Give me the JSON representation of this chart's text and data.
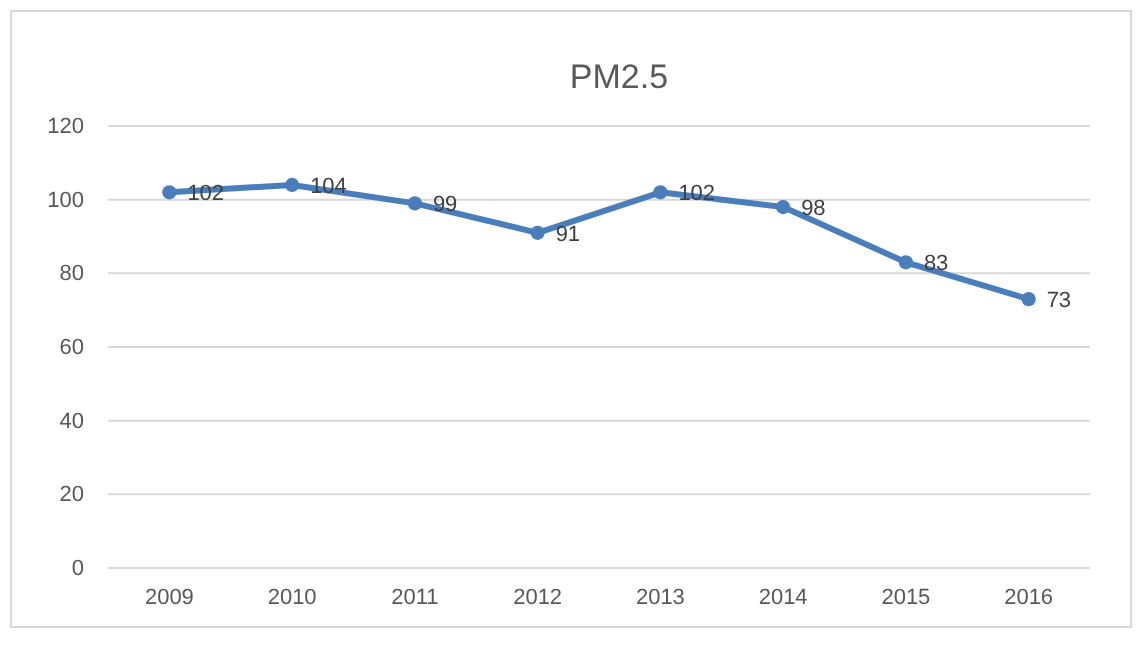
{
  "chart_data": {
    "type": "line",
    "title": "PM2.5",
    "categories": [
      "2009",
      "2010",
      "2011",
      "2012",
      "2013",
      "2014",
      "2015",
      "2016"
    ],
    "series": [
      {
        "color": "#4a7ebb",
        "values": [
          102,
          104,
          99,
          91,
          102,
          98,
          83,
          73
        ]
      }
    ],
    "ylim": [
      0,
      120
    ],
    "yticks": [
      0,
      20,
      40,
      60,
      80,
      100,
      120
    ],
    "grid": "y",
    "marker": "circle",
    "line_style": "solid",
    "data_labels": true
  }
}
